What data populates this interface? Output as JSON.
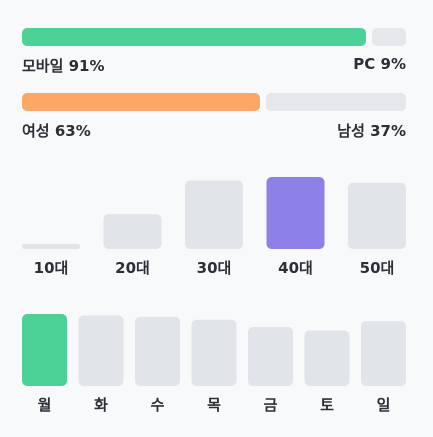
{
  "chart_data": [
    {
      "type": "bar",
      "orientation": "stacked-horizontal",
      "segments": [
        {
          "label": "모바일 91%",
          "value": 91
        },
        {
          "label": "PC 9%",
          "value": 9
        }
      ]
    },
    {
      "type": "bar",
      "orientation": "stacked-horizontal",
      "segments": [
        {
          "label": "여성 63%",
          "value": 63
        },
        {
          "label": "남성 37%",
          "value": 37
        }
      ]
    },
    {
      "type": "bar",
      "categories": [
        "10대",
        "20대",
        "30대",
        "40대",
        "50대"
      ],
      "values": [
        4,
        30,
        59,
        62,
        57
      ],
      "highlight_index": 3
    },
    {
      "type": "bar",
      "categories": [
        "월",
        "화",
        "수",
        "목",
        "금",
        "토",
        "일"
      ],
      "values": [
        100,
        98,
        96,
        92,
        82,
        77,
        90
      ],
      "highlight_index": 0
    }
  ],
  "colors": {
    "device_highlight": "#4cd197",
    "gender_highlight": "#fba864",
    "age_highlight": "#8d80e7",
    "weekday_highlight": "#4cd197",
    "neutral": "#e1e4e9"
  }
}
